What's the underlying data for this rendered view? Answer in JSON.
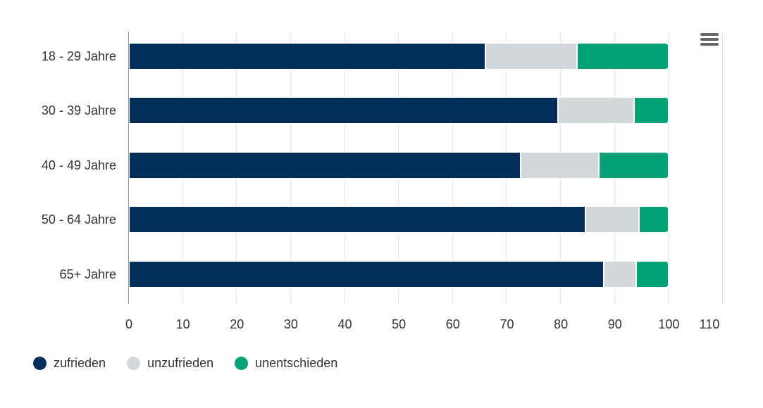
{
  "chart_data": {
    "type": "bar",
    "stacked": true,
    "orientation": "horizontal",
    "title": "",
    "xlabel": "",
    "ylabel": "",
    "categories": [
      "18 - 29 Jahre",
      "30 - 39 Jahre",
      "40 - 49 Jahre",
      "50 - 64 Jahre",
      "65+ Jahre"
    ],
    "series": [
      {
        "name": "zufrieden",
        "color": "#022e58",
        "values": [
          66,
          79.5,
          72.5,
          84.5,
          88
        ]
      },
      {
        "name": "unzufrieden",
        "color": "#d2d7da",
        "values": [
          17,
          14,
          14.5,
          10,
          6
        ]
      },
      {
        "name": "unentschieden",
        "color": "#00a275",
        "values": [
          17,
          6.5,
          13,
          5.5,
          6
        ]
      }
    ],
    "value_axis": {
      "min": 0,
      "max": 110,
      "tick_interval": 10,
      "ticks": [
        0,
        10,
        20,
        30,
        40,
        50,
        60,
        70,
        80,
        90,
        100,
        110
      ]
    },
    "grid": "vertical",
    "legend_position": "bottom-left"
  },
  "icons": {
    "context_menu": "hamburger"
  },
  "colors": {
    "background": "#ffffff",
    "text": "#333333",
    "gridline": "#e6e6e6",
    "axis_line": "#8f8f8f",
    "menu_icon": "#666666"
  }
}
